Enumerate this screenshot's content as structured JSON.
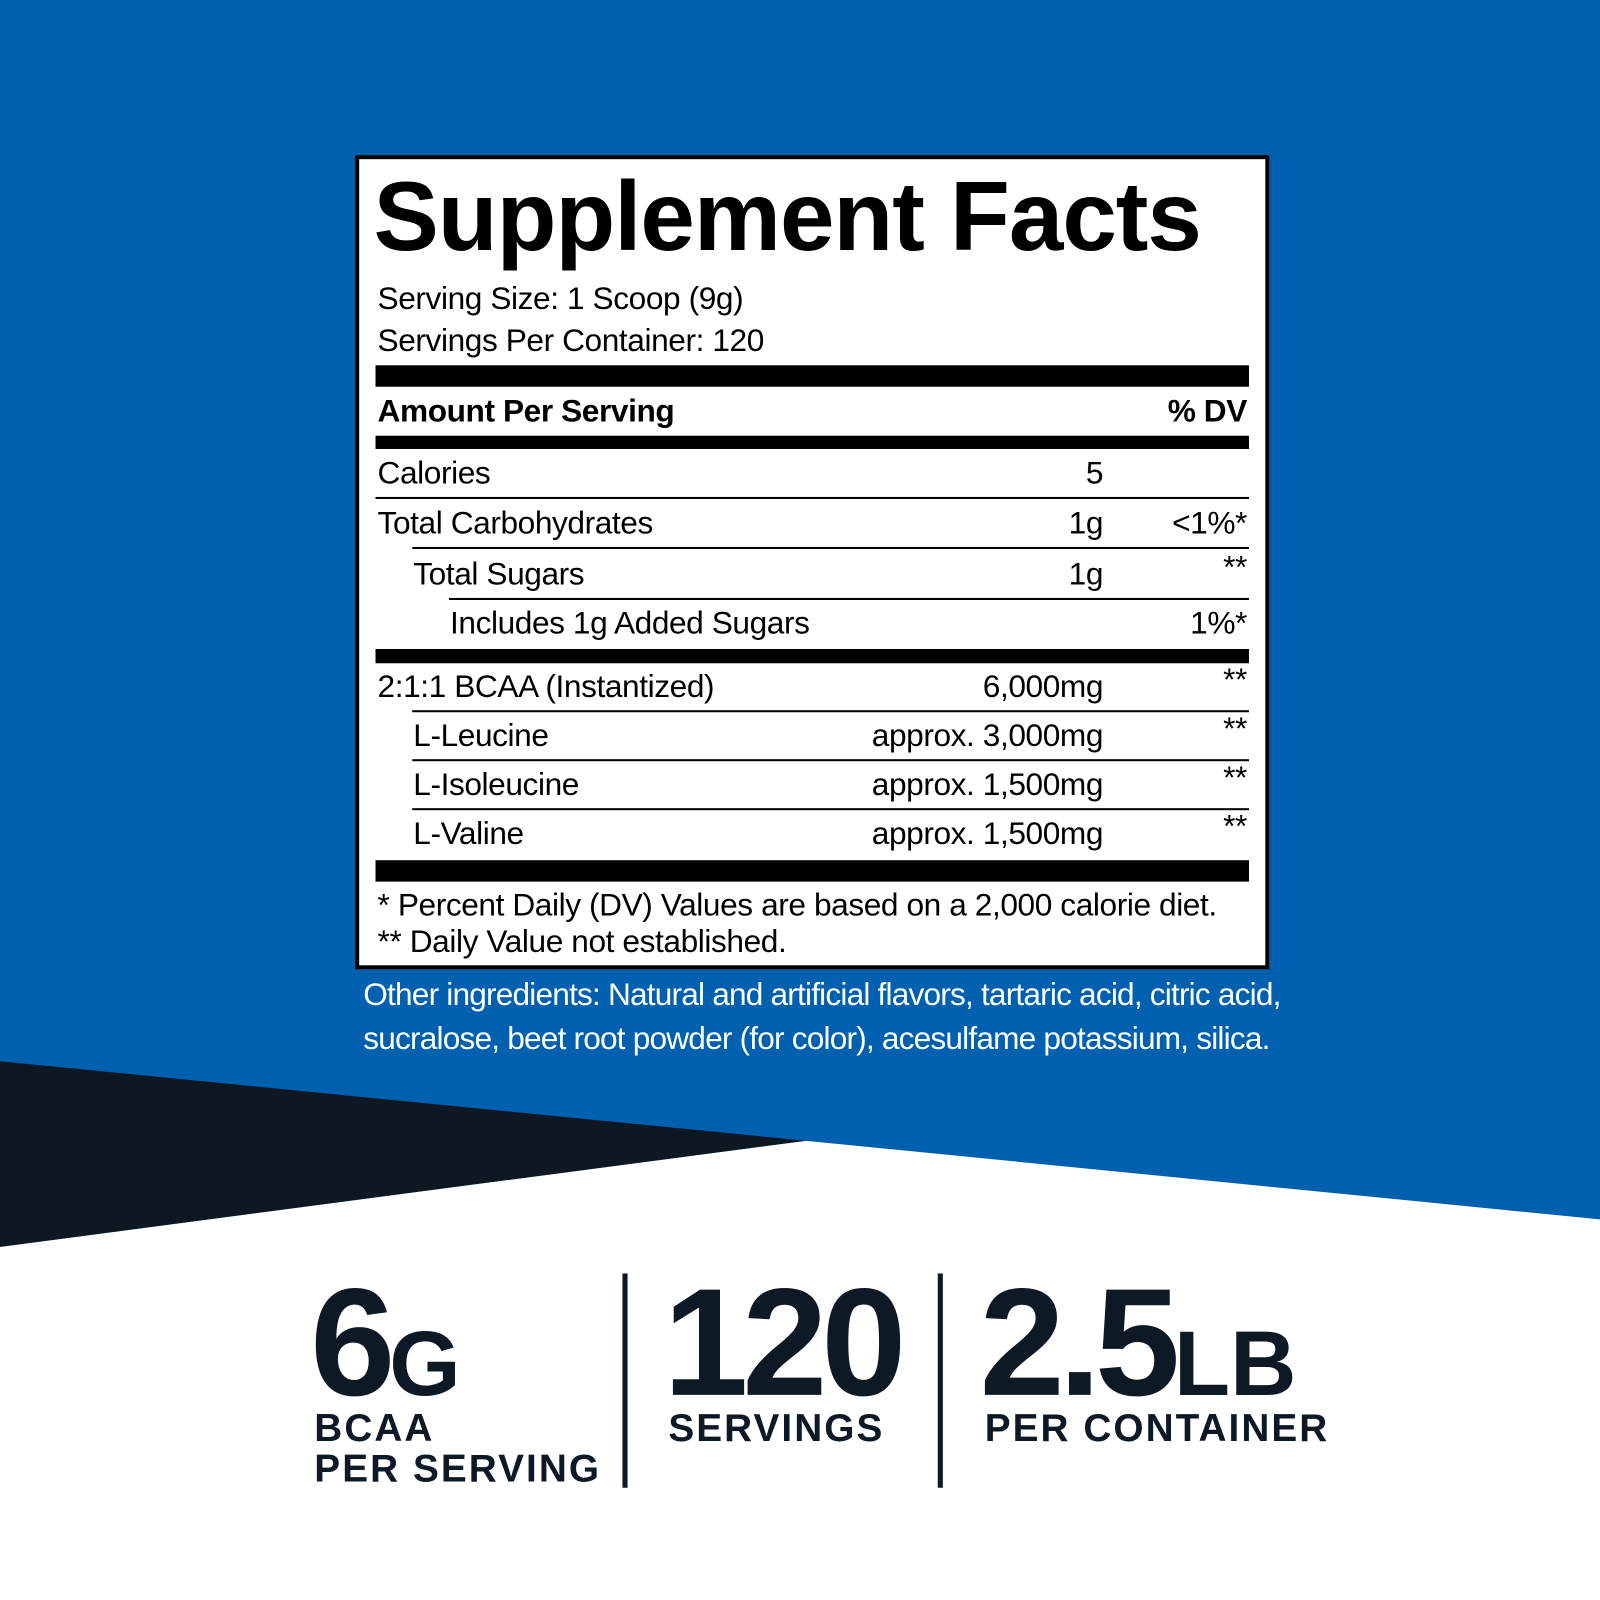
{
  "label": {
    "title": "Supplement Facts",
    "serving_size": "Serving Size: 1 Scoop (9g)",
    "servings_per_container": "Servings Per Container: 120",
    "header": {
      "left": "Amount Per Serving",
      "right": "% DV"
    },
    "rows": [
      {
        "name": "Calories",
        "amount": "5"
      },
      {
        "name": "Total Carbohydrates",
        "amount": "1g",
        "dv": "<1%*"
      },
      {
        "name": "Total Sugars",
        "amount": "1g",
        "dv": "**"
      },
      {
        "name": "Includes 1g Added Sugars",
        "dv": "1%*"
      },
      {
        "name": "2:1:1 BCAA (Instantized)",
        "amount": "6,000mg",
        "dv": "**"
      },
      {
        "name": "L-Leucine",
        "amount": "approx. 3,000mg",
        "dv": "**"
      },
      {
        "name": "L-Isoleucine",
        "amount": "approx. 1,500mg",
        "dv": "**"
      },
      {
        "name": "L-Valine",
        "amount": "approx. 1,500mg",
        "dv": "**"
      }
    ],
    "footnotes": [
      "* Percent Daily (DV) Values are based on a 2,000 calorie diet.",
      "** Daily Value not established."
    ]
  },
  "other_ingredients": [
    "Other ingredients: Natural and artificial flavors, tartaric acid, citric acid,",
    "sucralose, beet root powder (for color), acesulfame potassium, silica."
  ],
  "stats": [
    {
      "value": "6",
      "unit": "G",
      "label": [
        "BCAA",
        "PER SERVING"
      ]
    },
    {
      "value": "120",
      "label": [
        "SERVINGS"
      ]
    },
    {
      "value": "2.5",
      "unit": "LB",
      "label": [
        "PER CONTAINER"
      ]
    }
  ]
}
